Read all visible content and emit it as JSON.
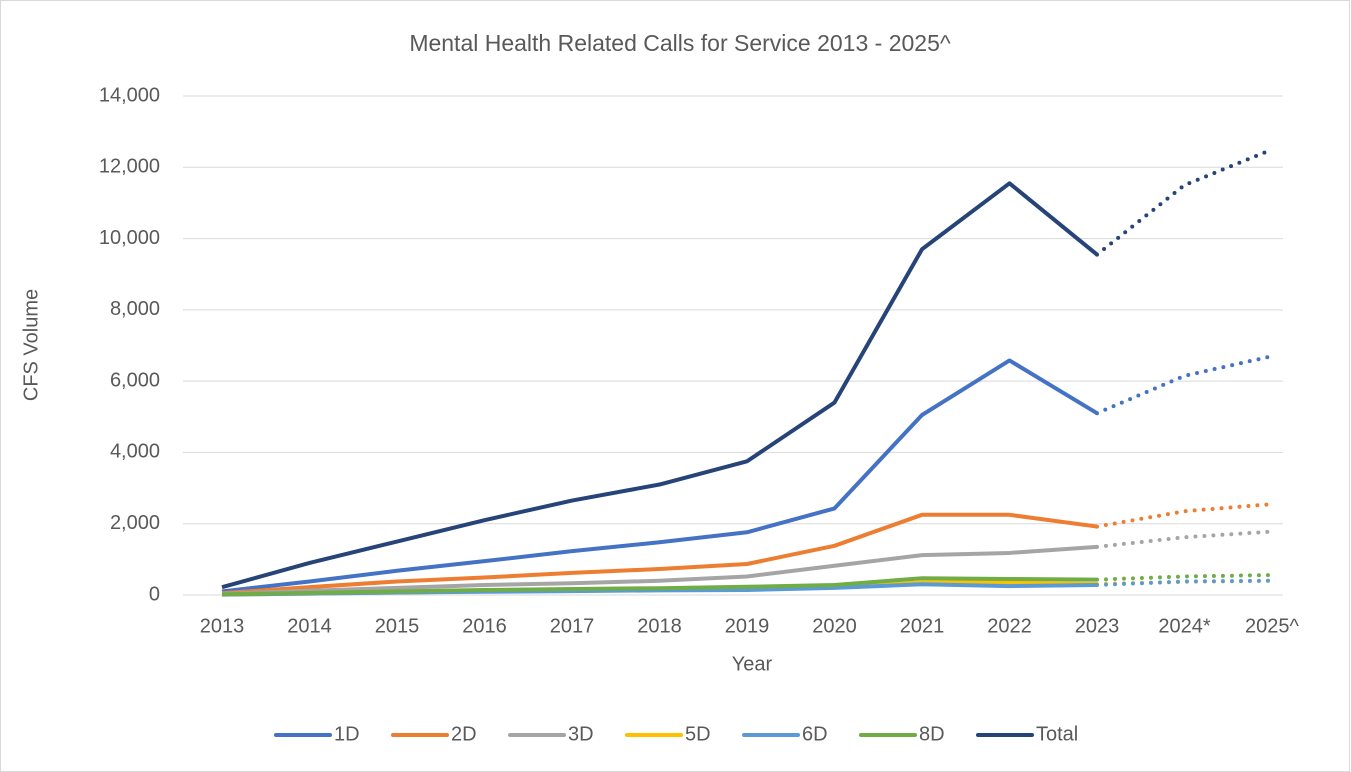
{
  "chart_data": {
    "type": "line",
    "title": "Mental Health Related Calls for Service 2013 - 2025^",
    "x_label": "Year",
    "y_label": "CFS Volume",
    "categories": [
      "2013",
      "2014",
      "2015",
      "2016",
      "2017",
      "2018",
      "2019",
      "2020",
      "2021",
      "2022",
      "2023",
      "2024*",
      "2025^"
    ],
    "projection_start": "2023",
    "series": [
      {
        "name": "1D",
        "color": "#4472c4",
        "values": [
          100,
          380,
          680,
          950,
          1230,
          1480,
          1760,
          2430,
          5050,
          6580,
          5100,
          6150,
          6700
        ]
      },
      {
        "name": "2D",
        "color": "#ed7d31",
        "values": [
          50,
          220,
          380,
          490,
          620,
          730,
          870,
          1380,
          2250,
          2250,
          1920,
          2350,
          2550
        ]
      },
      {
        "name": "3D",
        "color": "#a5a5a5",
        "values": [
          30,
          120,
          200,
          280,
          330,
          400,
          520,
          820,
          1120,
          1180,
          1350,
          1620,
          1780
        ]
      },
      {
        "name": "5D",
        "color": "#ffc000",
        "values": [
          10,
          40,
          70,
          100,
          120,
          140,
          170,
          230,
          350,
          350,
          310,
          370,
          400
        ]
      },
      {
        "name": "6D",
        "color": "#5b9bd5",
        "values": [
          10,
          40,
          70,
          90,
          110,
          130,
          140,
          200,
          300,
          250,
          280,
          380,
          400
        ]
      },
      {
        "name": "8D",
        "color": "#70ad47",
        "values": [
          20,
          60,
          100,
          140,
          170,
          190,
          230,
          280,
          470,
          450,
          430,
          520,
          560
        ]
      },
      {
        "name": "Total",
        "color": "#264478",
        "values": [
          220,
          900,
          1500,
          2100,
          2650,
          3100,
          3750,
          5400,
          9700,
          11550,
          9550,
          11500,
          12500
        ]
      }
    ],
    "ylim": [
      0,
      14000
    ],
    "yticks": [
      0,
      {
        "value": 2000,
        "label": "2,000"
      },
      {
        "value": 4000,
        "label": "4,000"
      },
      {
        "value": 6000,
        "label": "6,000"
      },
      {
        "value": 8000,
        "label": "8,000"
      },
      {
        "value": 10000,
        "label": "10,000"
      },
      {
        "value": 12000,
        "label": "12,000"
      },
      {
        "value": 14000,
        "label": "14,000"
      }
    ],
    "grid": true,
    "legend": "bottom"
  }
}
